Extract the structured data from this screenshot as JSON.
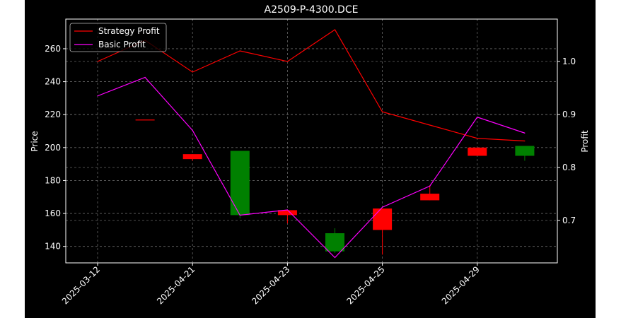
{
  "chart_data": {
    "type": "candlestick+line",
    "title": "A2509-P-4300.DCE",
    "ylabel_left": "Price",
    "ylabel_right": "Profit",
    "x_tick_labels": [
      "2025-03-12",
      "2025-04-21",
      "2025-04-23",
      "2025-04-25",
      "2025-04-29"
    ],
    "x_tick_positions": [
      0,
      2,
      4,
      6,
      8
    ],
    "y_left_ticks": [
      140,
      160,
      180,
      200,
      220,
      240,
      260
    ],
    "y_left_lim": [
      130,
      278
    ],
    "y_right_ticks": [
      0.7,
      0.8,
      0.9,
      1.0
    ],
    "y_right_lim": [
      0.62,
      1.08
    ],
    "grid": true,
    "legend_position": "upper-left",
    "candles": [
      {
        "x": 1,
        "open": 217,
        "high": 217,
        "low": 217,
        "close": 217,
        "color": "#ff0000"
      },
      {
        "x": 2,
        "open": 196,
        "high": 196,
        "low": 192,
        "close": 193,
        "color": "#ff0000"
      },
      {
        "x": 3,
        "open": 159,
        "high": 198,
        "low": 157,
        "close": 198,
        "color": "#008000"
      },
      {
        "x": 4,
        "open": 162,
        "high": 162,
        "low": 154,
        "close": 159,
        "color": "#ff0000"
      },
      {
        "x": 5,
        "open": 137,
        "high": 151,
        "low": 136,
        "close": 148,
        "color": "#008000"
      },
      {
        "x": 6,
        "open": 163,
        "high": 163,
        "low": 135,
        "close": 150,
        "color": "#ff0000"
      },
      {
        "x": 7,
        "open": 172,
        "high": 177,
        "low": 168,
        "close": 168,
        "color": "#ff0000"
      },
      {
        "x": 8,
        "open": 200,
        "high": 200,
        "low": 195,
        "close": 195,
        "color": "#ff0000"
      },
      {
        "x": 9,
        "open": 195,
        "high": 201,
        "low": 192,
        "close": 201,
        "color": "#008000"
      }
    ],
    "series": [
      {
        "name": "Strategy Profit",
        "color": "#ff0000",
        "axis": "right",
        "x": [
          0,
          1,
          2,
          3,
          4,
          5,
          6,
          7,
          8,
          9
        ],
        "values": [
          1.0,
          1.04,
          0.98,
          1.02,
          1.0,
          1.06,
          0.905,
          0.88,
          0.855,
          0.85
        ]
      },
      {
        "name": "Basic Profit",
        "color": "#ff00ff",
        "axis": "right",
        "x": [
          0,
          1,
          2,
          3,
          4,
          5,
          6,
          7,
          8,
          9
        ],
        "values": [
          0.935,
          0.97,
          0.87,
          0.71,
          0.72,
          0.63,
          0.725,
          0.765,
          0.895,
          0.865
        ]
      }
    ]
  }
}
